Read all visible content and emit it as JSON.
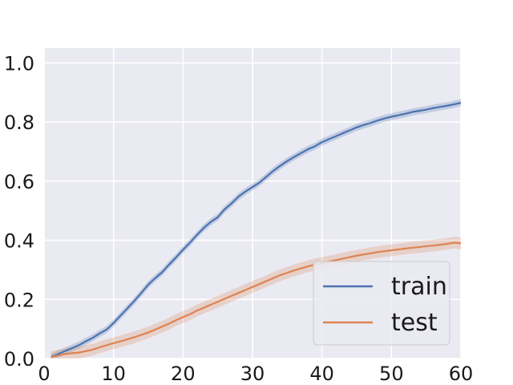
{
  "chart_data": {
    "type": "line",
    "title": "",
    "xlabel": "",
    "ylabel": "",
    "xlim": [
      0,
      60
    ],
    "ylim": [
      0,
      1.05
    ],
    "xticks": [
      0,
      10,
      20,
      30,
      40,
      50,
      60
    ],
    "yticks": [
      0.0,
      0.2,
      0.4,
      0.6,
      0.8,
      1.0
    ],
    "xtick_labels": [
      "0",
      "10",
      "20",
      "30",
      "40",
      "50",
      "60"
    ],
    "ytick_labels": [
      "0.0",
      "0.2",
      "0.4",
      "0.6",
      "0.8",
      "1.0"
    ],
    "grid": true,
    "legend_position": "bottom-right",
    "background": "#eaeaf2",
    "series": [
      {
        "name": "train",
        "color": "#4c72b0",
        "x": [
          1,
          2,
          3,
          4,
          5,
          6,
          7,
          8,
          9,
          10,
          11,
          12,
          13,
          14,
          15,
          16,
          17,
          18,
          19,
          20,
          21,
          22,
          23,
          24,
          25,
          26,
          27,
          28,
          29,
          30,
          31,
          32,
          33,
          34,
          35,
          36,
          37,
          38,
          39,
          40,
          41,
          42,
          43,
          44,
          45,
          46,
          47,
          48,
          49,
          50,
          51,
          52,
          53,
          54,
          55,
          56,
          57,
          58,
          59,
          60
        ],
        "y": [
          0.005,
          0.015,
          0.025,
          0.035,
          0.045,
          0.058,
          0.07,
          0.085,
          0.098,
          0.12,
          0.145,
          0.17,
          0.195,
          0.222,
          0.25,
          0.272,
          0.292,
          0.318,
          0.342,
          0.368,
          0.392,
          0.418,
          0.442,
          0.462,
          0.478,
          0.505,
          0.525,
          0.548,
          0.565,
          0.58,
          0.595,
          0.615,
          0.635,
          0.652,
          0.668,
          0.682,
          0.695,
          0.708,
          0.718,
          0.732,
          0.742,
          0.752,
          0.762,
          0.772,
          0.782,
          0.79,
          0.797,
          0.805,
          0.812,
          0.818,
          0.823,
          0.828,
          0.834,
          0.838,
          0.842,
          0.847,
          0.851,
          0.855,
          0.86,
          0.865
        ],
        "band": 0.012
      },
      {
        "name": "test",
        "color": "#dd8452",
        "x": [
          1,
          2,
          3,
          4,
          5,
          6,
          7,
          8,
          9,
          10,
          11,
          12,
          13,
          14,
          15,
          16,
          17,
          18,
          19,
          20,
          21,
          22,
          23,
          24,
          25,
          26,
          27,
          28,
          29,
          30,
          31,
          32,
          33,
          34,
          35,
          36,
          37,
          38,
          39,
          40,
          41,
          42,
          43,
          44,
          45,
          46,
          47,
          48,
          49,
          50,
          51,
          52,
          53,
          54,
          55,
          56,
          57,
          58,
          59,
          60
        ],
        "y": [
          0.005,
          0.01,
          0.015,
          0.018,
          0.02,
          0.025,
          0.03,
          0.038,
          0.045,
          0.052,
          0.058,
          0.065,
          0.072,
          0.08,
          0.088,
          0.098,
          0.108,
          0.118,
          0.13,
          0.14,
          0.15,
          0.162,
          0.172,
          0.182,
          0.192,
          0.202,
          0.212,
          0.222,
          0.232,
          0.242,
          0.252,
          0.262,
          0.272,
          0.282,
          0.29,
          0.298,
          0.305,
          0.312,
          0.318,
          0.323,
          0.328,
          0.333,
          0.338,
          0.343,
          0.348,
          0.352,
          0.356,
          0.36,
          0.363,
          0.366,
          0.369,
          0.372,
          0.375,
          0.377,
          0.38,
          0.382,
          0.385,
          0.388,
          0.392,
          0.39
        ],
        "band": 0.02
      }
    ]
  }
}
